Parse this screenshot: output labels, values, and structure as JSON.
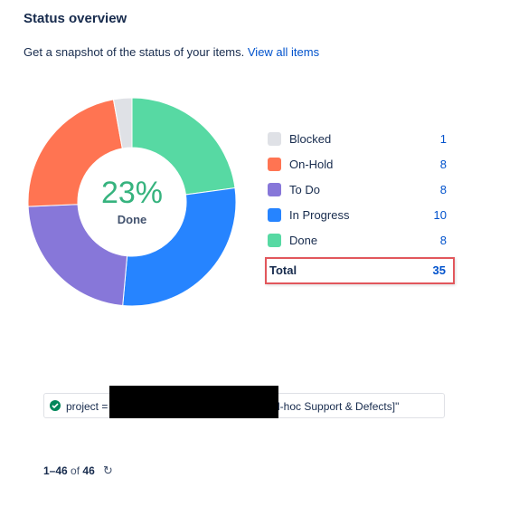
{
  "header": {
    "title": "Status overview",
    "subtitle": "Get a snapshot of the status of your items.",
    "view_all_link": "View all items"
  },
  "donut": {
    "center_percent": "23%",
    "center_label": "Done"
  },
  "chart_data": {
    "type": "pie",
    "categories": [
      "Blocked",
      "On-Hold",
      "To Do",
      "In Progress",
      "Done"
    ],
    "values": [
      1,
      8,
      8,
      10,
      8
    ],
    "colors": [
      "#dfe1e6",
      "#ff7452",
      "#8777d9",
      "#2684ff",
      "#57d9a3"
    ],
    "order_clockwise_from_top": [
      "Done",
      "In Progress",
      "To Do",
      "On-Hold",
      "Blocked"
    ]
  },
  "legend": {
    "items": [
      {
        "label": "Blocked",
        "value": "1",
        "color": "#dfe1e6"
      },
      {
        "label": "On-Hold",
        "value": "8",
        "color": "#ff7452"
      },
      {
        "label": "To Do",
        "value": "8",
        "color": "#8777d9"
      },
      {
        "label": "In Progress",
        "value": "10",
        "color": "#2684ff"
      },
      {
        "label": "Done",
        "value": "8",
        "color": "#57d9a3"
      }
    ],
    "total_label": "Total",
    "total_value": "35"
  },
  "query": {
    "prefix": "project =",
    "suffix": "d-hoc Support & Defects]\""
  },
  "pagination": {
    "range": "1–46",
    "of": "of",
    "total": "46"
  }
}
